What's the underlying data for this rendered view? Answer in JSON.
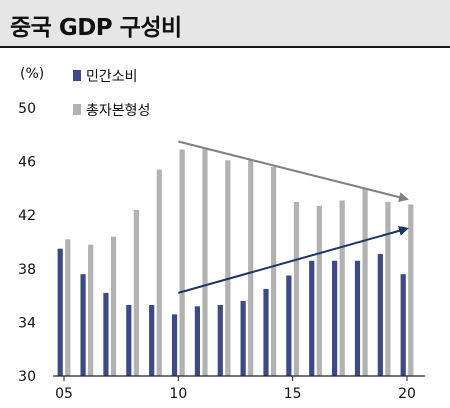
{
  "title": "중국 GDP 구성비",
  "chart_data": {
    "type": "bar",
    "unit_label": "(%)",
    "x_tick_labels": [
      "05",
      "10",
      "15",
      "20"
    ],
    "y_tick_labels": [
      "30",
      "34",
      "38",
      "42",
      "46",
      "50"
    ],
    "ylim": [
      30,
      50
    ],
    "x": [
      2005,
      2006,
      2007,
      2008,
      2009,
      2010,
      2011,
      2012,
      2013,
      2014,
      2015,
      2016,
      2017,
      2018,
      2019,
      2020
    ],
    "series": [
      {
        "name": "민간소비",
        "color": "#3d4a8a",
        "values": [
          39.5,
          37.6,
          36.2,
          35.3,
          35.3,
          34.6,
          35.2,
          35.3,
          35.6,
          36.5,
          37.5,
          38.6,
          38.6,
          38.6,
          39.1,
          37.6
        ]
      },
      {
        "name": "총자본형성",
        "color": "#b2b2b2",
        "values": [
          40.2,
          39.8,
          40.4,
          42.4,
          45.4,
          46.9,
          47.0,
          46.1,
          46.1,
          45.6,
          43.0,
          42.7,
          43.1,
          44.0,
          43.0,
          42.8
        ]
      }
    ],
    "trend_arrows": [
      {
        "name": "investment-down-trend",
        "color": "#808080",
        "from": [
          2010,
          47.5
        ],
        "to": [
          2020,
          43.2
        ]
      },
      {
        "name": "consumption-up-trend",
        "color": "#1d3562",
        "from": [
          2010,
          36.2
        ],
        "to": [
          2020,
          41.0
        ]
      }
    ],
    "grid": false,
    "legend_position": "top-left"
  }
}
